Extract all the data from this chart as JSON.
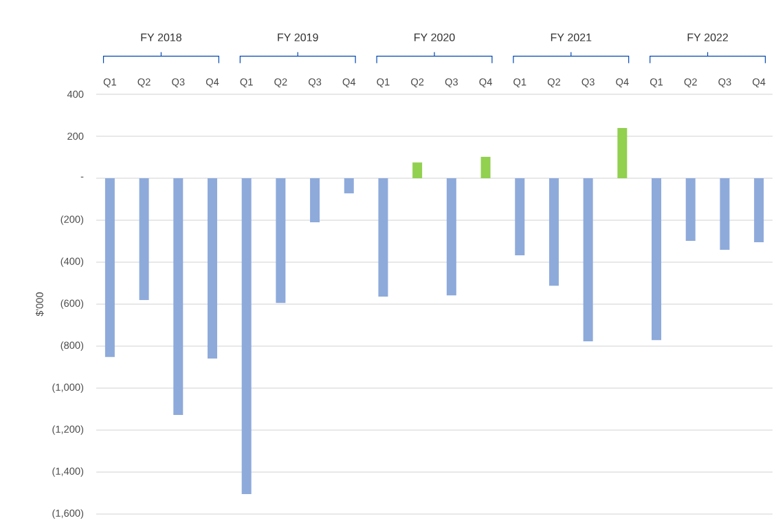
{
  "chart_data": {
    "type": "bar",
    "categories": [
      "Q1",
      "Q2",
      "Q3",
      "Q4",
      "Q1",
      "Q2",
      "Q3",
      "Q4",
      "Q1",
      "Q2",
      "Q3",
      "Q4",
      "Q1",
      "Q2",
      "Q3",
      "Q4",
      "Q1",
      "Q2",
      "Q3",
      "Q4"
    ],
    "values": [
      -852,
      -580,
      -1128,
      -859,
      -1505,
      -594,
      -210,
      -72,
      -564,
      75,
      -558,
      102,
      -367,
      -512,
      -777,
      239,
      -771,
      -298,
      -341,
      -305
    ],
    "colors": [
      "#8eaadb",
      "#8eaadb",
      "#8eaadb",
      "#8eaadb",
      "#8eaadb",
      "#8eaadb",
      "#8eaadb",
      "#8eaadb",
      "#8eaadb",
      "#92d050",
      "#8eaadb",
      "#92d050",
      "#8eaadb",
      "#8eaadb",
      "#8eaadb",
      "#92d050",
      "#8eaadb",
      "#8eaadb",
      "#8eaadb",
      "#8eaadb"
    ],
    "annotations": [
      "FY 2018",
      "FY 2019",
      "FY 2020",
      "FY 2021",
      "FY 2022"
    ],
    "ylabel": "$'000",
    "ylim": [
      -1600,
      400
    ],
    "yticks": [
      {
        "value": -1600,
        "label": "(1,600)"
      },
      {
        "value": -1400,
        "label": "(1,400)"
      },
      {
        "value": -1200,
        "label": "(1,200)"
      },
      {
        "value": -1000,
        "label": "(1,000)"
      },
      {
        "value": -800,
        "label": "(800)"
      },
      {
        "value": -600,
        "label": "(600)"
      },
      {
        "value": -400,
        "label": "(400)"
      },
      {
        "value": -200,
        "label": "(200)"
      },
      {
        "value": 0,
        "label": "-"
      },
      200,
      400
    ],
    "grid": "y"
  }
}
